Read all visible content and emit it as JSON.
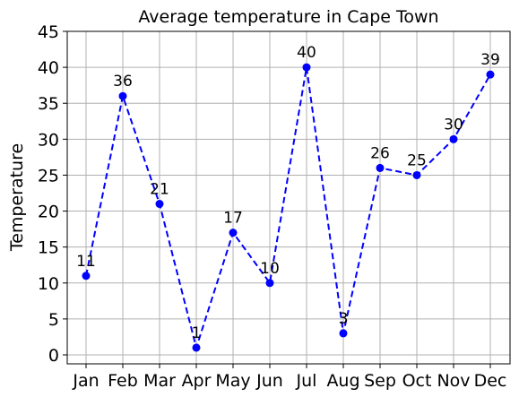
{
  "chart_data": {
    "type": "line",
    "title": "Average temperature in Cape Town",
    "xlabel": "",
    "ylabel": "Temperature",
    "categories": [
      "Jan",
      "Feb",
      "Mar",
      "Apr",
      "May",
      "Jun",
      "Jul",
      "Aug",
      "Sep",
      "Oct",
      "Nov",
      "Dec"
    ],
    "series": [
      {
        "values": [
          11,
          36,
          21,
          1,
          17,
          10,
          40,
          3,
          26,
          25,
          30,
          39
        ],
        "color": "#0000ff",
        "line_style": "dashed",
        "marker": "circle"
      }
    ],
    "data_labels": [
      "11",
      "36",
      "21",
      "1",
      "17",
      "10",
      "40",
      "3",
      "26",
      "25",
      "30",
      "39"
    ],
    "ylim": [
      -1,
      45
    ],
    "yticks": [
      0,
      5,
      10,
      15,
      20,
      25,
      30,
      35,
      40,
      45
    ],
    "grid": true,
    "grid_color": "#b0b0b0",
    "legend": "none"
  }
}
